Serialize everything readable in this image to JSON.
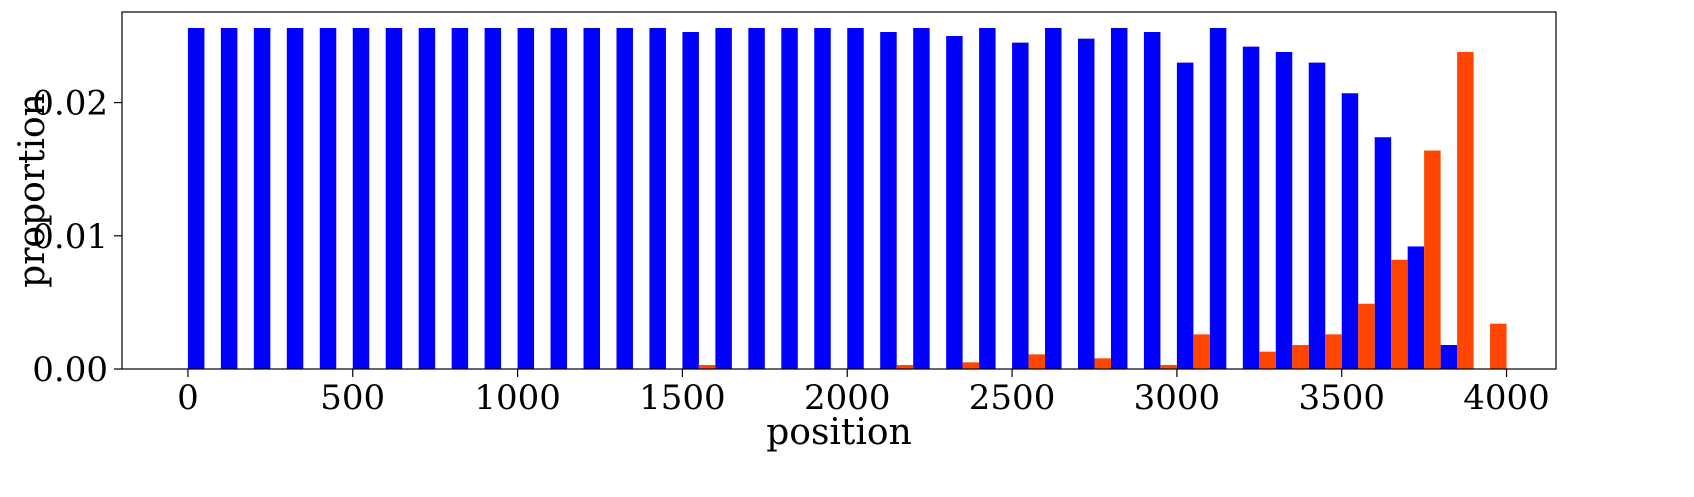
{
  "chart_data": {
    "type": "bar",
    "xlabel": "position",
    "ylabel": "proportion",
    "xlim": [
      -200,
      4150
    ],
    "ylim": [
      0,
      0.0268
    ],
    "bin_width": 100,
    "xticks": [
      0,
      500,
      1000,
      1500,
      2000,
      2500,
      3000,
      3500,
      4000
    ],
    "yticks": [
      0.0,
      0.01,
      0.02
    ],
    "ytick_labels": [
      "0.00",
      "0.01",
      "0.02"
    ],
    "grid": false,
    "legend": "none",
    "series": [
      {
        "color": "#0000ff",
        "x": [
          0,
          100,
          200,
          300,
          400,
          500,
          600,
          700,
          800,
          900,
          1000,
          1100,
          1200,
          1300,
          1400,
          1500,
          1600,
          1700,
          1800,
          1900,
          2000,
          2100,
          2200,
          2300,
          2400,
          2500,
          2600,
          2700,
          2800,
          2900,
          3000,
          3100,
          3200,
          3300,
          3400,
          3500,
          3600,
          3700,
          3800
        ],
        "values": [
          0.0256,
          0.0256,
          0.0256,
          0.0256,
          0.0256,
          0.0256,
          0.0256,
          0.0256,
          0.0256,
          0.0256,
          0.0256,
          0.0256,
          0.0256,
          0.0256,
          0.0256,
          0.0253,
          0.0256,
          0.0256,
          0.0256,
          0.0256,
          0.0256,
          0.0253,
          0.0256,
          0.025,
          0.0256,
          0.0245,
          0.0256,
          0.0248,
          0.0256,
          0.0253,
          0.023,
          0.0256,
          0.0242,
          0.0238,
          0.023,
          0.0207,
          0.0174,
          0.0092,
          0.0018
        ]
      },
      {
        "color": "#ff4500",
        "x": [
          1500,
          2100,
          2300,
          2500,
          2700,
          2900,
          3000,
          3200,
          3300,
          3400,
          3500,
          3600,
          3700,
          3800,
          3900
        ],
        "values": [
          0.0003,
          0.0003,
          0.0005,
          0.0011,
          0.0008,
          0.0003,
          0.0026,
          0.0013,
          0.0018,
          0.0026,
          0.0049,
          0.0082,
          0.0164,
          0.0238,
          0.0034
        ]
      }
    ]
  }
}
